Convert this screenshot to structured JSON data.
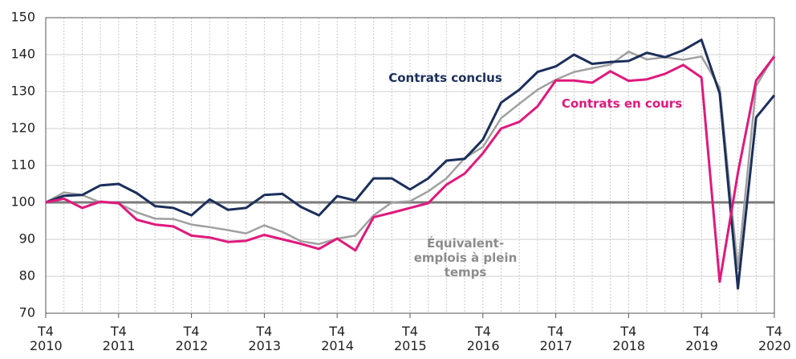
{
  "chart_data": {
    "type": "line",
    "categories": [
      "T4 2010",
      null,
      null,
      null,
      "T4 2011",
      null,
      null,
      null,
      "T4 2012",
      null,
      null,
      null,
      "T4 2013",
      null,
      null,
      null,
      "T4 2014",
      null,
      null,
      null,
      "T4 2015",
      null,
      null,
      null,
      "T4 2016",
      null,
      null,
      null,
      "T4 2017",
      null,
      null,
      null,
      "T4 2018",
      null,
      null,
      null,
      "T4 2019",
      null,
      null,
      null,
      "T4 2020"
    ],
    "series": [
      {
        "name": "Équivalent-emplois à plein temps",
        "color": "#a0a0a0",
        "values": [
          100,
          102.7,
          102,
          100,
          99.7,
          97.3,
          95.6,
          95.5,
          94,
          93.3,
          92.5,
          91.6,
          93.8,
          92,
          89.5,
          88.7,
          90.2,
          91,
          96.5,
          100,
          100.3,
          103,
          106.5,
          112,
          115,
          122.8,
          126.7,
          130.5,
          133.2,
          135.3,
          136.3,
          137.3,
          140.8,
          138.7,
          139.3,
          138.6,
          139.5,
          131,
          82,
          131.5,
          139.8
        ]
      },
      {
        "name": "Contrats conclus",
        "color": "#1b2f5b",
        "values": [
          100,
          101.8,
          102,
          104.6,
          105,
          102.5,
          99,
          98.5,
          96.5,
          100.8,
          98,
          98.5,
          102,
          102.3,
          98.8,
          96.5,
          101.7,
          100.5,
          106.5,
          106.5,
          103.5,
          106.5,
          111.3,
          111.8,
          117,
          127,
          130.5,
          135.3,
          136.8,
          140,
          137.5,
          138,
          138.3,
          140.5,
          139.3,
          141.2,
          144,
          129.5,
          76.7,
          123,
          129
        ]
      },
      {
        "name": "Contrats en cours",
        "color": "#e0197d",
        "values": [
          100,
          101,
          98.5,
          100.2,
          99.8,
          95.3,
          94,
          93.5,
          91,
          90.5,
          89.3,
          89.6,
          91.2,
          90,
          88.8,
          87.4,
          90.2,
          87,
          96,
          97.2,
          98.5,
          99.8,
          104.8,
          107.8,
          113.3,
          120,
          121.8,
          126,
          133,
          133,
          132.4,
          135.5,
          132.9,
          133.3,
          134.8,
          137.2,
          133.8,
          78.5,
          108,
          133,
          139.5
        ]
      }
    ],
    "reference_line": 100,
    "ylim": [
      70,
      150
    ],
    "yticks": [
      70,
      80,
      90,
      100,
      110,
      120,
      130,
      140,
      150
    ],
    "grid": true
  }
}
